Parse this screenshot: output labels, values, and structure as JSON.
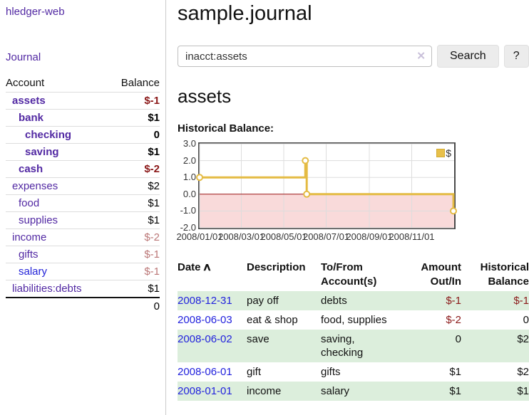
{
  "sidebar": {
    "brand": "hledger-web",
    "nav": {
      "journal": "Journal"
    },
    "table": {
      "headers": {
        "account": "Account",
        "balance": "Balance"
      },
      "accounts": [
        {
          "name": "assets",
          "indent": 1,
          "bold": true,
          "balance": "$-1",
          "negative": true,
          "strong_negative": true
        },
        {
          "name": "bank",
          "indent": 2,
          "bold": true,
          "balance": "$1",
          "negative": false
        },
        {
          "name": "checking",
          "indent": 3,
          "bold": true,
          "balance": "0",
          "negative": false
        },
        {
          "name": "saving",
          "indent": 3,
          "bold": true,
          "balance": "$1",
          "negative": false
        },
        {
          "name": "cash",
          "indent": 2,
          "bold": true,
          "balance": "$-2",
          "negative": true,
          "strong_negative": true
        },
        {
          "name": "expenses",
          "indent": 1,
          "bold": false,
          "balance": "$2",
          "negative": false
        },
        {
          "name": "food",
          "indent": 2,
          "bold": false,
          "balance": "$1",
          "negative": false
        },
        {
          "name": "supplies",
          "indent": 2,
          "bold": false,
          "balance": "$1",
          "negative": false
        },
        {
          "name": "income",
          "indent": 1,
          "bold": false,
          "balance": "$-2",
          "negative": true
        },
        {
          "name": "gifts",
          "indent": 2,
          "bold": false,
          "balance": "$-1",
          "negative": true
        },
        {
          "name": "salary",
          "indent": 2,
          "bold": false,
          "balance": "$-1",
          "negative": true
        },
        {
          "name": "liabilities:debts",
          "indent": 1,
          "bold": false,
          "balance": "$1",
          "negative": false
        }
      ],
      "total": "0"
    }
  },
  "main": {
    "title": "sample.journal",
    "search": {
      "value": "inacct:assets",
      "clear_icon": "✕",
      "button": "Search",
      "help": "?"
    },
    "account_heading": "assets",
    "chart_label": "Historical Balance:",
    "register": {
      "headers": {
        "date": "Date",
        "sort_indicator": "∧",
        "description": "Description",
        "account": "To/From Account(s)",
        "amount": "Amount Out/In",
        "balance": "Historical Balance"
      },
      "rows": [
        {
          "date": "2008-12-31",
          "description": "pay off",
          "accounts": "debts",
          "amount": "$-1",
          "balance": "$-1"
        },
        {
          "date": "2008-06-03",
          "description": "eat & shop",
          "accounts": "food, supplies",
          "amount": "$-2",
          "balance": "0"
        },
        {
          "date": "2008-06-02",
          "description": "save",
          "accounts": "saving, checking",
          "amount": "0",
          "balance": "$2"
        },
        {
          "date": "2008-06-01",
          "description": "gift",
          "accounts": "gifts",
          "amount": "$1",
          "balance": "$2"
        },
        {
          "date": "2008-01-01",
          "description": "income",
          "accounts": "salary",
          "amount": "$1",
          "balance": "$1"
        }
      ]
    }
  },
  "chart_data": {
    "type": "line",
    "title": "Historical Balance",
    "step": true,
    "x_range": [
      "2008-01-01",
      "2009-01-01"
    ],
    "ylim": [
      -2,
      3
    ],
    "y_ticks": [
      3,
      2,
      1,
      0,
      -1,
      -2
    ],
    "x_ticks": [
      "2008/01/01",
      "2008/03/01",
      "2008/05/01",
      "2008/07/01",
      "2008/09/01",
      "2008/11/01"
    ],
    "legend": "$",
    "legend_position": "top-right",
    "grid": true,
    "negative_region_highlighted": true,
    "series": [
      {
        "name": "$",
        "points": [
          {
            "date": "2008-01-01",
            "value": 1
          },
          {
            "date": "2008-06-01",
            "value": 2
          },
          {
            "date": "2008-06-03",
            "value": 0
          },
          {
            "date": "2008-12-31",
            "value": -1
          }
        ]
      }
    ]
  },
  "colors": {
    "accent_purple": "#5229a3",
    "link_blue": "#2222dd",
    "negative_red": "#8b1919",
    "negative_red_light": "#bb7777",
    "row_green": "#dceedc",
    "chart_gold": "#e4bb43",
    "negative_region_pink": "#f9dada",
    "zero_line_red": "#991111"
  }
}
